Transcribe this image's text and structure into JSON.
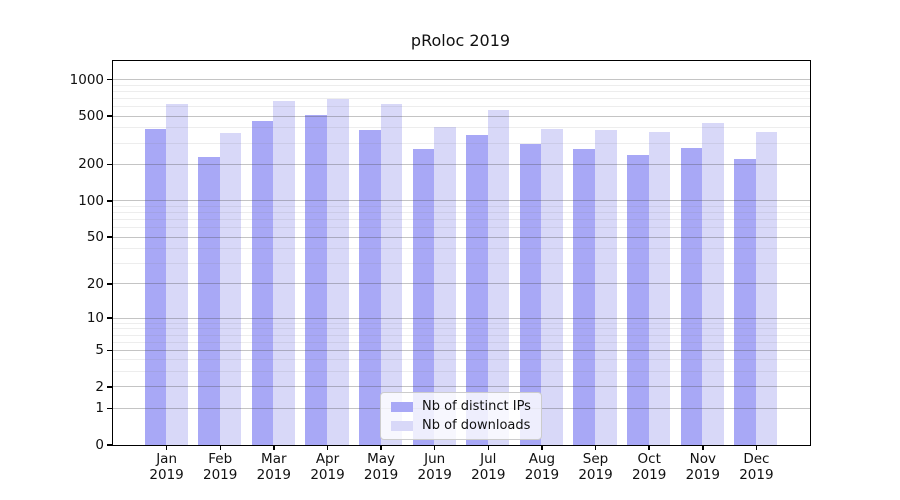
{
  "chart_data": {
    "type": "bar",
    "title": "pRoloc 2019",
    "scale": "log1p",
    "grid": "horizontal",
    "legend_position": "inside-bottom-center",
    "categories": [
      "Jan",
      "Feb",
      "Mar",
      "Apr",
      "May",
      "Jun",
      "Jul",
      "Aug",
      "Sep",
      "Oct",
      "Nov",
      "Dec"
    ],
    "category_year": "2019",
    "series": [
      {
        "name": "Nb of distinct IPs",
        "color": "#a8a8f6",
        "values": [
          390,
          230,
          455,
          505,
          380,
          264,
          345,
          292,
          268,
          238,
          272,
          220
        ]
      },
      {
        "name": "Nb of downloads",
        "color": "#d8d8f8",
        "values": [
          620,
          357,
          665,
          685,
          625,
          400,
          554,
          390,
          380,
          365,
          436,
          365
        ]
      }
    ],
    "y_ticks": [
      0,
      1,
      2,
      5,
      10,
      20,
      50,
      100,
      200,
      500,
      1000
    ],
    "y_minor_gridlines": [
      3,
      4,
      6,
      7,
      8,
      9,
      30,
      40,
      60,
      70,
      80,
      90,
      300,
      400,
      600,
      700,
      800,
      900
    ],
    "ylim": [
      0,
      1420
    ]
  }
}
